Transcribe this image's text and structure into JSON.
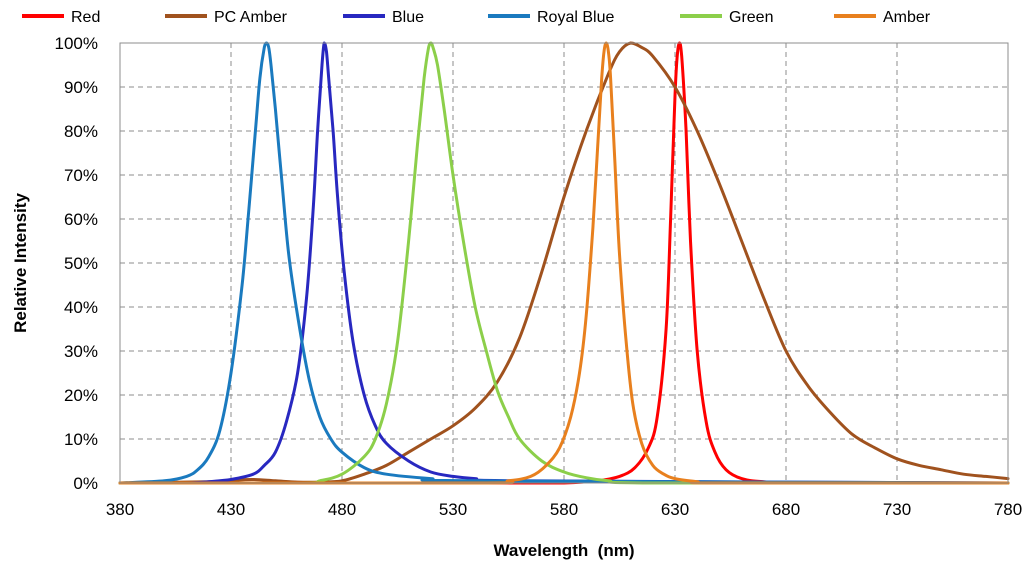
{
  "chart_data": {
    "type": "line",
    "xlabel": "Wavelength  (nm)",
    "ylabel": "Relative Intensity",
    "xlim": [
      380,
      780
    ],
    "ylim": [
      0,
      100
    ],
    "x_ticks": [
      380,
      430,
      480,
      530,
      580,
      630,
      680,
      730,
      780
    ],
    "y_ticks": [
      0,
      10,
      20,
      30,
      40,
      50,
      60,
      70,
      80,
      90,
      100
    ],
    "y_tick_labels": [
      "0%",
      "10%",
      "20%",
      "30%",
      "40%",
      "50%",
      "60%",
      "70%",
      "80%",
      "90%",
      "100%"
    ],
    "grid": true,
    "legend_position": "top",
    "series": [
      {
        "name": "Red",
        "color": "#ff0000",
        "x": [
          380,
          560,
          580,
          595,
          605,
          612,
          618,
          622,
          626,
          628,
          630,
          631,
          632,
          633,
          635,
          637,
          640,
          644,
          648,
          653,
          660,
          670,
          690,
          780
        ],
        "y": [
          0,
          0,
          0,
          0.5,
          1.5,
          3.5,
          8,
          15,
          35,
          60,
          88,
          97,
          100,
          97,
          80,
          55,
          30,
          14,
          7,
          3,
          1,
          0.3,
          0,
          0
        ]
      },
      {
        "name": "PC Amber",
        "color": "#a0521e",
        "x": [
          380,
          420,
          430,
          440,
          450,
          460,
          470,
          480,
          490,
          500,
          510,
          520,
          530,
          540,
          550,
          560,
          570,
          580,
          590,
          600,
          605,
          610,
          615,
          620,
          630,
          640,
          650,
          660,
          670,
          680,
          690,
          700,
          710,
          720,
          730,
          740,
          750,
          760,
          770,
          780
        ],
        "y": [
          0,
          0.3,
          0.6,
          0.8,
          0.5,
          0.2,
          0.2,
          0.5,
          2,
          4,
          7,
          10,
          13,
          17,
          23,
          33,
          48,
          65,
          80,
          93,
          98,
          100,
          99,
          97,
          90,
          80,
          68,
          55,
          42,
          30,
          22,
          16,
          11,
          8,
          5.5,
          4,
          3,
          2,
          1.5,
          1
        ]
      },
      {
        "name": "Blue",
        "color": "#2828c0",
        "x": [
          380,
          410,
          420,
          430,
          440,
          445,
          450,
          455,
          460,
          464,
          467,
          469,
          471,
          472,
          473,
          474,
          476,
          478,
          481,
          485,
          490,
          495,
          500,
          510,
          520,
          530,
          540,
          560,
          780
        ],
        "y": [
          0,
          0,
          0.3,
          0.8,
          2,
          4,
          7,
          14,
          25,
          42,
          62,
          80,
          95,
          100,
          98,
          92,
          80,
          65,
          48,
          32,
          20,
          13,
          9,
          5,
          2.5,
          1.5,
          1,
          0.5,
          0
        ]
      },
      {
        "name": "Royal Blue",
        "color": "#1a7abf",
        "x": [
          380,
          400,
          410,
          415,
          420,
          425,
          430,
          435,
          438,
          441,
          443,
          445,
          446,
          447,
          448,
          450,
          453,
          456,
          460,
          465,
          470,
          475,
          480,
          490,
          500,
          520,
          540,
          780
        ],
        "y": [
          0,
          0.5,
          1.5,
          3,
          6,
          12,
          25,
          45,
          62,
          80,
          92,
          99,
          100,
          99,
          95,
          85,
          68,
          52,
          38,
          24,
          15,
          10,
          7,
          3.5,
          2,
          1,
          0.5,
          0
        ]
      },
      {
        "name": "Green",
        "color": "#8ccf4a",
        "x": [
          380,
          460,
          470,
          480,
          490,
          495,
          500,
          505,
          510,
          514,
          517,
          519,
          520,
          521,
          523,
          526,
          530,
          535,
          540,
          545,
          550,
          555,
          560,
          570,
          580,
          590,
          600,
          620,
          780
        ],
        "y": [
          0,
          0,
          0.5,
          2,
          6,
          10,
          18,
          32,
          55,
          77,
          92,
          99,
          100,
          99,
          95,
          85,
          70,
          54,
          40,
          30,
          21,
          15,
          10,
          5,
          2.5,
          1.2,
          0.5,
          0,
          0
        ]
      },
      {
        "name": "Amber",
        "color": "#e8801e",
        "x": [
          380,
          540,
          555,
          565,
          572,
          578,
          583,
          587,
          590,
          593,
          595,
          597,
          598,
          599,
          600,
          601,
          603,
          605,
          608,
          611,
          615,
          620,
          625,
          630,
          640,
          650,
          780
        ],
        "y": [
          0,
          0,
          0.5,
          1.5,
          4,
          8,
          15,
          25,
          38,
          58,
          75,
          92,
          98,
          100,
          98,
          92,
          72,
          52,
          32,
          18,
          9,
          4,
          2,
          1,
          0.3,
          0,
          0
        ]
      }
    ]
  }
}
